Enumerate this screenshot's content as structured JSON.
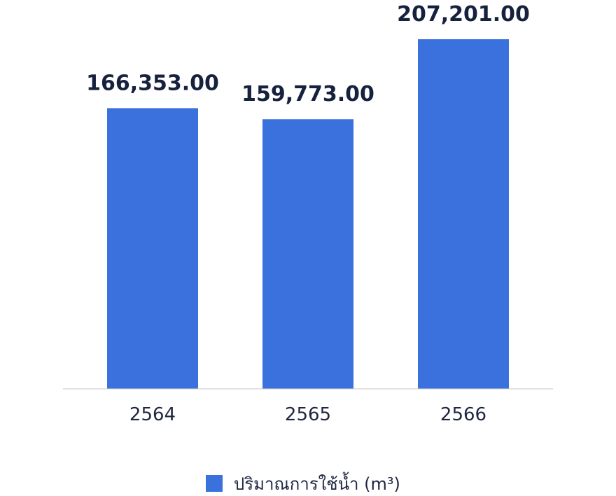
{
  "chart_data": {
    "type": "bar",
    "categories": [
      "2564",
      "2565",
      "2566"
    ],
    "series": [
      {
        "name": "ปริมาณการใช้น้ำ (m³)",
        "values": [
          166353.0,
          159773.0,
          207201.0
        ],
        "value_labels": [
          "166,353.00",
          "159,773.00",
          "207,201.00"
        ]
      }
    ],
    "ylim": [
      0,
      207201
    ],
    "grid": false,
    "legend_position": "bottom-center",
    "colors": {
      "bar": "#3b71dd",
      "axis_line": "#c6c6c6",
      "label_text": "#16213e"
    }
  }
}
